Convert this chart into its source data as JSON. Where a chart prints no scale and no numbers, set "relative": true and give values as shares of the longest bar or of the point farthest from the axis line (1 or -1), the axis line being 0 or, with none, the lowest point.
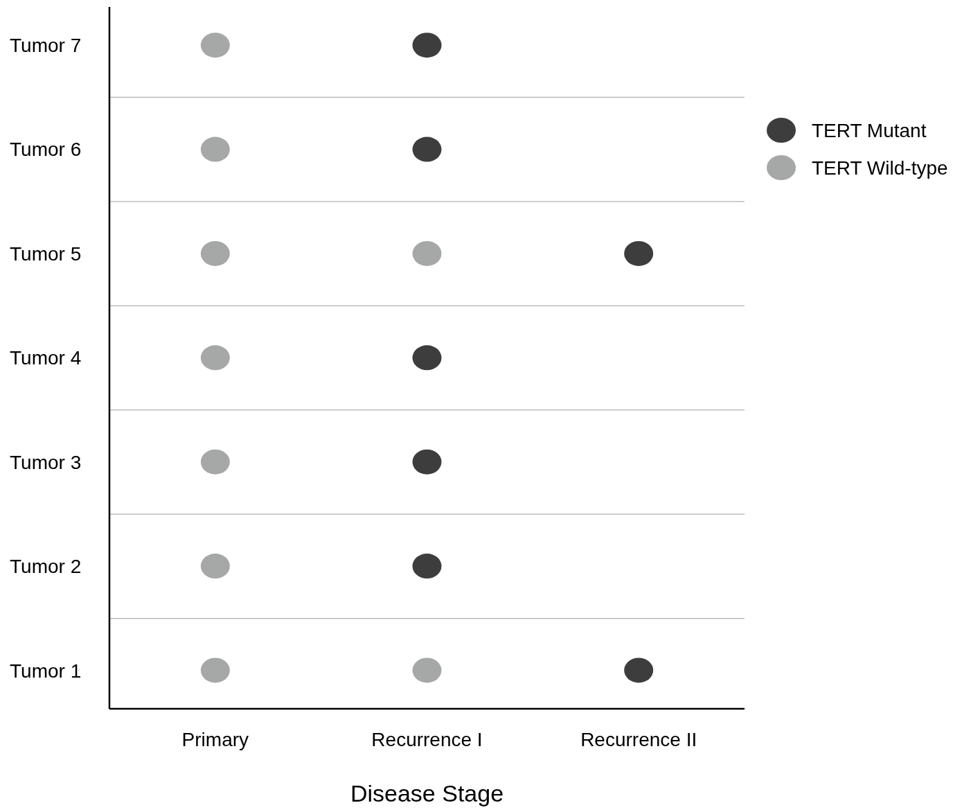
{
  "chart_data": {
    "type": "scatter",
    "relative": true,
    "xlabel": "Disease Stage",
    "categories": [
      "Primary",
      "Recurrence I",
      "Recurrence II"
    ],
    "y_categories": [
      "Tumor 7",
      "Tumor 6",
      "Tumor 5",
      "Tumor 4",
      "Tumor 3",
      "Tumor 2",
      "Tumor 1"
    ],
    "series": [
      {
        "name": "TERT Mutant",
        "color": "#3d3d3d",
        "x": [
          "Recurrence II",
          "Recurrence I",
          "Recurrence I",
          "Recurrence I",
          "Recurrence II",
          "Recurrence I",
          "Recurrence I"
        ],
        "values": [
          0.058,
          0.215,
          0.372,
          0.529,
          0.686,
          0.843,
          1
        ]
      },
      {
        "name": "TERT Wild-type",
        "color": "#a6a8a7",
        "x": [
          "Primary",
          "Recurrence I",
          "Primary",
          "Primary",
          "Primary",
          "Primary",
          "Recurrence I",
          "Primary",
          "Primary"
        ],
        "values": [
          0.058,
          0.058,
          0.215,
          0.372,
          0.529,
          0.686,
          0.686,
          0.843,
          1
        ]
      }
    ],
    "grid": "y",
    "legend": "top right",
    "marker": "circle"
  }
}
